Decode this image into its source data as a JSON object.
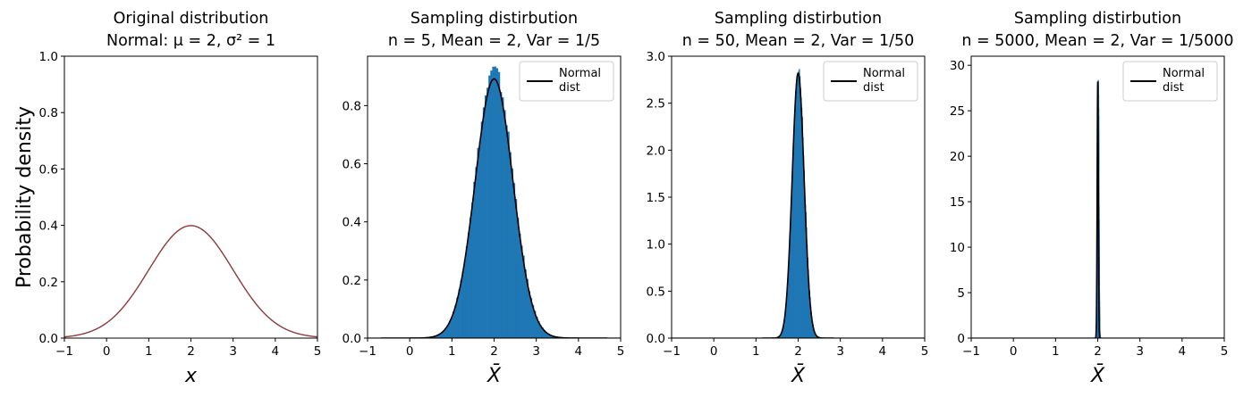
{
  "colors": {
    "hist": "#1f77b4",
    "normal_line": "#000000",
    "original_curve": "#8c3a3a",
    "legend_border": "#cccccc"
  },
  "chart_data": [
    {
      "type": "line",
      "title_lines": [
        "Original distribution",
        "Normal: μ = 2, σ² = 1"
      ],
      "xlabel": "x",
      "ylabel": "Probability density",
      "xlim": [
        -1,
        5
      ],
      "ylim": [
        0,
        1.0
      ],
      "xticks": [
        "−1",
        "0",
        "1",
        "2",
        "3",
        "4",
        "5"
      ],
      "yticks": [
        "0.0",
        "0.2",
        "0.4",
        "0.6",
        "0.8",
        "1.0"
      ],
      "yticks_values": [
        0,
        0.2,
        0.4,
        0.6,
        0.8,
        1.0
      ],
      "series": [
        {
          "mean": 2,
          "variance": 1,
          "peak_density": 0.399
        }
      ],
      "legend": null
    },
    {
      "type": "bar",
      "title_lines": [
        "Sampling distirbution",
        "n = 5, Mean = 2, Var = 1/5"
      ],
      "xlabel": "X̄",
      "xlim": [
        -1,
        5
      ],
      "ylim": [
        0,
        0.97
      ],
      "xticks": [
        "−1",
        "0",
        "1",
        "2",
        "3",
        "4",
        "5"
      ],
      "yticks": [
        "0.0",
        "0.2",
        "0.4",
        "0.6",
        "0.8"
      ],
      "yticks_values": [
        0,
        0.2,
        0.4,
        0.6,
        0.8
      ],
      "histogram": {
        "mean": 2,
        "variance": 0.2,
        "max_bar": 0.92
      },
      "normal_curve": {
        "mean": 2,
        "variance": 0.2,
        "peak_density": 0.892
      },
      "legend": {
        "label_lines": [
          "Normal",
          "dist"
        ],
        "position": "top-right"
      }
    },
    {
      "type": "bar",
      "title_lines": [
        "Sampling distirbution",
        "n = 50, Mean = 2, Var = 1/50"
      ],
      "xlabel": "X̄",
      "xlim": [
        -1,
        5
      ],
      "ylim": [
        0,
        3.0
      ],
      "xticks": [
        "−1",
        "0",
        "1",
        "2",
        "3",
        "4",
        "5"
      ],
      "yticks": [
        "0.0",
        "0.5",
        "1.0",
        "1.5",
        "2.0",
        "2.5",
        "3.0"
      ],
      "yticks_values": [
        0,
        0.5,
        1.0,
        1.5,
        2.0,
        2.5,
        3.0
      ],
      "histogram": {
        "mean": 2,
        "variance": 0.02,
        "max_bar": 2.85
      },
      "normal_curve": {
        "mean": 2,
        "variance": 0.02,
        "peak_density": 2.82
      },
      "legend": {
        "label_lines": [
          "Normal",
          "dist"
        ],
        "position": "top-right"
      }
    },
    {
      "type": "bar",
      "title_lines": [
        "Sampling distirbution",
        "n = 5000, Mean = 2, Var = 1/5000"
      ],
      "xlabel": "X̄",
      "xlim": [
        -1,
        5
      ],
      "ylim": [
        0,
        31
      ],
      "xticks": [
        "−1",
        "0",
        "1",
        "2",
        "3",
        "4",
        "5"
      ],
      "yticks": [
        "0",
        "5",
        "10",
        "15",
        "20",
        "25",
        "30"
      ],
      "yticks_values": [
        0,
        5,
        10,
        15,
        20,
        25,
        30
      ],
      "histogram": {
        "mean": 2,
        "variance": 0.0002,
        "max_bar": 28.2
      },
      "normal_curve": {
        "mean": 2,
        "variance": 0.0002,
        "peak_density": 28.2
      },
      "legend": {
        "label_lines": [
          "Normal",
          "dist"
        ],
        "position": "top-right"
      }
    }
  ]
}
